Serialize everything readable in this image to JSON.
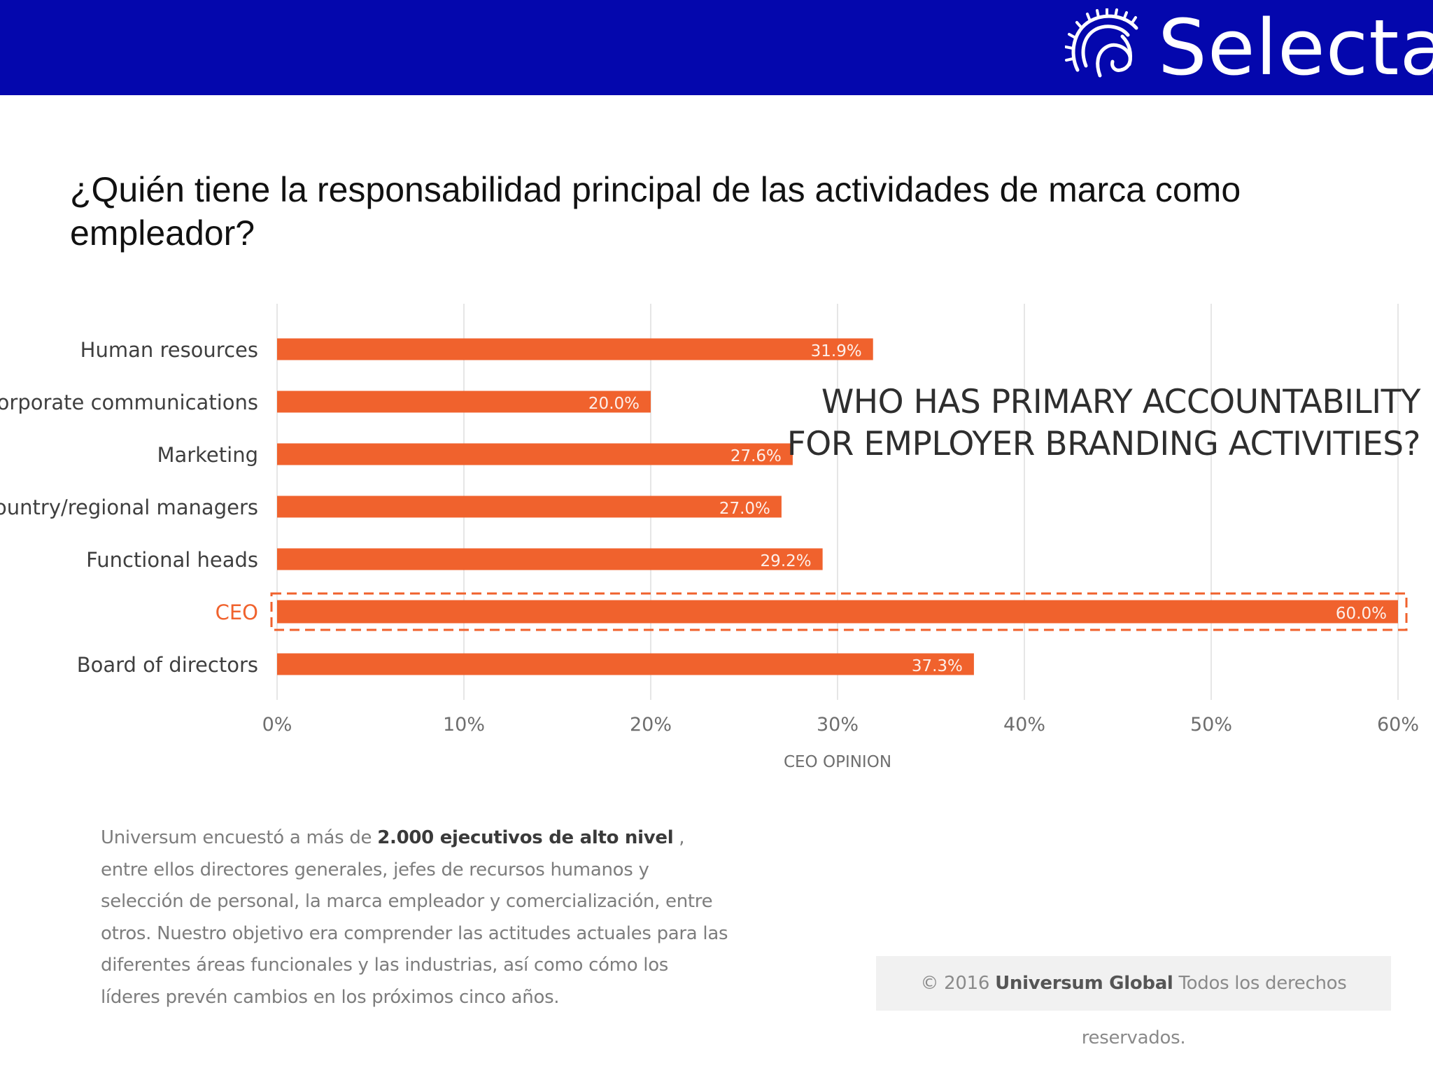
{
  "header": {
    "brand_name": "Selecta",
    "brand_color": "#0407ad"
  },
  "slide": {
    "title": "¿Quién tiene la responsabilidad principal de las actividades de marca como empleador?"
  },
  "chart_data": {
    "type": "bar",
    "orientation": "horizontal",
    "title": "WHO HAS PRIMARY ACCOUNTABILITY FOR EMPLOYER BRANDING ACTIVITIES?",
    "xlabel": "CEO OPINION",
    "ylabel": "",
    "xlim": [
      0,
      60
    ],
    "x_ticks": [
      "0%",
      "10%",
      "20%",
      "30%",
      "40%",
      "50%",
      "60%"
    ],
    "grid": true,
    "categories": [
      "Human resources",
      "Corporate communications",
      "Marketing",
      "Country/regional managers",
      "Functional heads",
      "CEO",
      "Board of directors"
    ],
    "values": [
      31.9,
      20.0,
      27.6,
      27.0,
      29.2,
      60.0,
      37.3
    ],
    "value_labels": [
      "31.9%",
      "20.0%",
      "27.6%",
      "27.0%",
      "29.2%",
      "60.0%",
      "37.3%"
    ],
    "highlighted_category": "CEO",
    "bar_color": "#f0622d",
    "highlight_label_color": "#f0622d"
  },
  "footnote": {
    "part1": "Universum encuestó a más de ",
    "bold": "2.000 ejecutivos de alto nivel",
    "part2": " , entre ellos directores generales, jefes de recursos humanos y selección de personal, la marca empleador y comercialización, entre otros. Nuestro objetivo era comprender las actitudes actuales para las diferentes áreas funcionales y las industrias, así como cómo los líderes prevén cambios en los próximos cinco años."
  },
  "copyright": {
    "prefix": "© 2016 ",
    "bold": "Universum Global",
    "suffix": " Todos los derechos reservados."
  }
}
